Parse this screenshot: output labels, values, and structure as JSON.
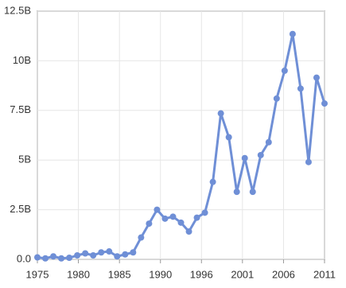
{
  "chart_data": {
    "type": "line",
    "x": [
      1975,
      1976,
      1977,
      1978,
      1979,
      1980,
      1981,
      1982,
      1983,
      1984,
      1985,
      1986,
      1987,
      1988,
      1989,
      1990,
      1991,
      1992,
      1993,
      1994,
      1995,
      1996,
      1997,
      1998,
      1999,
      2000,
      2001,
      2002,
      2003,
      2004,
      2005,
      2006,
      2007,
      2008,
      2009,
      2010,
      2011
    ],
    "series": [
      {
        "color": "#6f8fd6",
        "values": [
          0.1,
          0.05,
          0.15,
          0.05,
          0.08,
          0.2,
          0.3,
          0.2,
          0.35,
          0.4,
          0.15,
          0.25,
          0.35,
          1.1,
          1.8,
          2.5,
          2.05,
          2.15,
          1.85,
          1.4,
          2.1,
          2.35,
          3.9,
          7.35,
          6.15,
          3.4,
          5.1,
          3.4,
          5.25,
          5.9,
          8.1,
          9.5,
          11.35,
          8.6,
          4.9,
          9.15,
          7.85
        ]
      }
    ],
    "xlim": [
      1975,
      2011
    ],
    "xticks": [
      1975,
      {
        "value": 1980.14,
        "label": "1980"
      },
      {
        "value": 1985.29,
        "label": "1985"
      },
      {
        "value": 1990.43,
        "label": "1990"
      },
      {
        "value": 1995.57,
        "label": "1996"
      },
      {
        "value": 2000.71,
        "label": "2001"
      },
      {
        "value": 2005.86,
        "label": "2006"
      },
      2011
    ],
    "ylim": [
      0,
      12.5
    ],
    "yticks": [
      {
        "value": 0,
        "label": "0.0"
      },
      {
        "value": 2.5,
        "label": "2.5B"
      },
      {
        "value": 5,
        "label": "5B"
      },
      {
        "value": 7.5,
        "label": "7.5B"
      },
      {
        "value": 10,
        "label": "10B"
      },
      {
        "value": 12.5,
        "label": "12.5B"
      }
    ],
    "grid": true
  }
}
